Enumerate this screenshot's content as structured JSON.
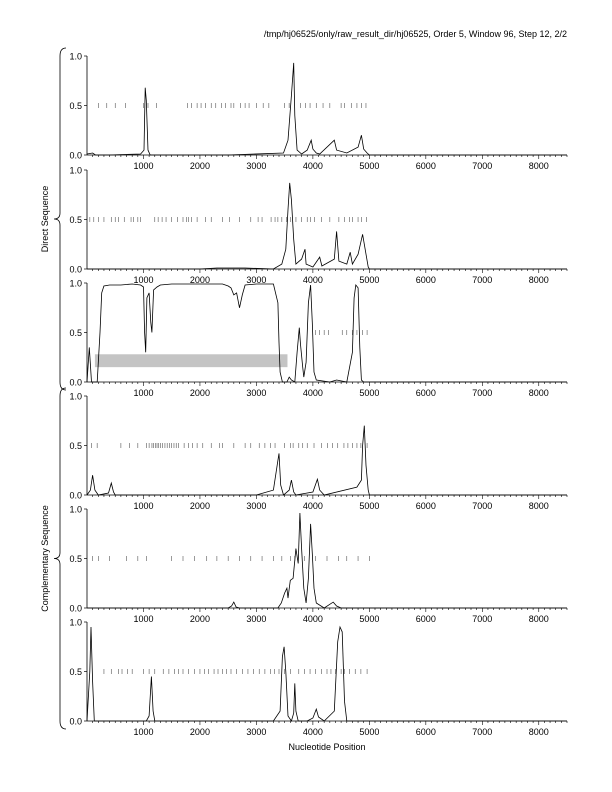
{
  "header": {
    "path": "/tmp/hj06525/only/raw_result_dir/hj06525, Order 5, Window 96, Step 12, 2/2"
  },
  "xlabel": "Nucleotide Position",
  "groups": [
    {
      "label": "Direct Sequence",
      "panels": [
        0,
        1,
        2
      ]
    },
    {
      "label": "Complementary Sequence",
      "panels": [
        3,
        4,
        5
      ]
    }
  ],
  "chart_data": {
    "type": "line",
    "xlim": [
      0,
      8500
    ],
    "ylim": [
      0,
      1
    ],
    "x_ticks": [
      1000,
      2000,
      3000,
      4000,
      5000,
      6000,
      7000,
      8000
    ],
    "y_ticks": [
      0,
      0.5,
      1
    ],
    "y_tick_labels": [
      "0.0",
      "0.5",
      "1.0"
    ],
    "panels": [
      {
        "group": "Direct Sequence",
        "line": [
          [
            0,
            0.01
          ],
          [
            100,
            0.02
          ],
          [
            150,
            0.0
          ],
          [
            400,
            0.0
          ],
          [
            950,
            0.01
          ],
          [
            1010,
            0.05
          ],
          [
            1030,
            0.68
          ],
          [
            1050,
            0.55
          ],
          [
            1080,
            0.05
          ],
          [
            1120,
            0.0
          ],
          [
            2500,
            0.0
          ],
          [
            3480,
            0.02
          ],
          [
            3560,
            0.15
          ],
          [
            3620,
            0.6
          ],
          [
            3660,
            0.93
          ],
          [
            3680,
            0.4
          ],
          [
            3720,
            0.05
          ],
          [
            3800,
            0.01
          ],
          [
            3900,
            0.05
          ],
          [
            3970,
            0.15
          ],
          [
            4000,
            0.06
          ],
          [
            4060,
            0.02
          ],
          [
            4120,
            0.01
          ],
          [
            4380,
            0.15
          ],
          [
            4420,
            0.05
          ],
          [
            4600,
            0.02
          ],
          [
            4800,
            0.08
          ],
          [
            4860,
            0.2
          ],
          [
            4900,
            0.06
          ],
          [
            4960,
            0.02
          ],
          [
            5000,
            0.0
          ],
          [
            8500,
            0.0
          ]
        ],
        "ticks_05": [
          200,
          350,
          500,
          680,
          1000,
          1080,
          1230,
          1780,
          1850,
          1950,
          2020,
          2100,
          2200,
          2280,
          2380,
          2450,
          2550,
          2600,
          2720,
          2800,
          2870,
          3000,
          3120,
          3220,
          3500,
          3580,
          3780,
          3870,
          3950,
          4060,
          4180,
          4300,
          4500,
          4560,
          4680,
          4780,
          4860,
          4940
        ]
      },
      {
        "group": "Direct Sequence",
        "line": [
          [
            0,
            0.0
          ],
          [
            2000,
            0.0
          ],
          [
            2300,
            0.01
          ],
          [
            2800,
            0.01
          ],
          [
            3300,
            0.0
          ],
          [
            3450,
            0.05
          ],
          [
            3520,
            0.2
          ],
          [
            3560,
            0.6
          ],
          [
            3590,
            0.87
          ],
          [
            3620,
            0.7
          ],
          [
            3660,
            0.3
          ],
          [
            3700,
            0.05
          ],
          [
            3800,
            0.1
          ],
          [
            3860,
            0.2
          ],
          [
            3880,
            0.05
          ],
          [
            4000,
            0.02
          ],
          [
            4120,
            0.12
          ],
          [
            4160,
            0.03
          ],
          [
            4380,
            0.1
          ],
          [
            4420,
            0.38
          ],
          [
            4460,
            0.08
          ],
          [
            4600,
            0.05
          ],
          [
            4660,
            0.17
          ],
          [
            4700,
            0.05
          ],
          [
            4800,
            0.15
          ],
          [
            4880,
            0.35
          ],
          [
            4940,
            0.15
          ],
          [
            4980,
            0.02
          ],
          [
            5000,
            0.0
          ],
          [
            8500,
            0.0
          ]
        ],
        "ticks_05": [
          50,
          120,
          200,
          300,
          430,
          500,
          560,
          660,
          780,
          820,
          900,
          950,
          1200,
          1260,
          1330,
          1400,
          1500,
          1600,
          1700,
          1760,
          1800,
          1850,
          1950,
          2100,
          2200,
          2400,
          2520,
          2700,
          2900,
          3030,
          3100,
          3260,
          3330,
          3380,
          3450,
          3530,
          3600,
          3700,
          3800,
          3900,
          3960,
          4030,
          4150,
          4300,
          4460,
          4560,
          4650,
          4700,
          4800,
          4860,
          4950
        ]
      },
      {
        "group": "Direct Sequence",
        "line": [
          [
            0,
            0.0
          ],
          [
            40,
            0.35
          ],
          [
            80,
            0.0
          ],
          [
            180,
            0.0
          ],
          [
            230,
            0.5
          ],
          [
            260,
            0.9
          ],
          [
            300,
            0.97
          ],
          [
            400,
            0.98
          ],
          [
            600,
            0.98
          ],
          [
            800,
            0.99
          ],
          [
            950,
            0.98
          ],
          [
            1000,
            0.96
          ],
          [
            1020,
            0.5
          ],
          [
            1040,
            0.3
          ],
          [
            1060,
            0.85
          ],
          [
            1100,
            0.9
          ],
          [
            1130,
            0.6
          ],
          [
            1150,
            0.5
          ],
          [
            1180,
            0.93
          ],
          [
            1240,
            0.96
          ],
          [
            1300,
            0.98
          ],
          [
            1500,
            0.99
          ],
          [
            2000,
            0.99
          ],
          [
            2400,
            0.99
          ],
          [
            2500,
            0.97
          ],
          [
            2550,
            0.95
          ],
          [
            2600,
            0.88
          ],
          [
            2650,
            0.9
          ],
          [
            2700,
            0.75
          ],
          [
            2750,
            0.88
          ],
          [
            2800,
            0.98
          ],
          [
            3000,
            0.99
          ],
          [
            3300,
            0.99
          ],
          [
            3380,
            0.8
          ],
          [
            3400,
            0.4
          ],
          [
            3420,
            0.1
          ],
          [
            3460,
            0.0
          ],
          [
            3540,
            0.0
          ],
          [
            3580,
            0.05
          ],
          [
            3620,
            0.02
          ],
          [
            3680,
            0.0
          ],
          [
            3720,
            0.3
          ],
          [
            3760,
            0.55
          ],
          [
            3780,
            0.38
          ],
          [
            3820,
            0.15
          ],
          [
            3840,
            0.05
          ],
          [
            3880,
            0.2
          ],
          [
            3920,
            0.8
          ],
          [
            3960,
            0.98
          ],
          [
            3990,
            0.6
          ],
          [
            4020,
            0.1
          ],
          [
            4060,
            0.02
          ],
          [
            4300,
            0.0
          ],
          [
            4420,
            0.02
          ],
          [
            4600,
            0.0
          ],
          [
            4700,
            0.3
          ],
          [
            4730,
            0.85
          ],
          [
            4760,
            0.98
          ],
          [
            4800,
            0.95
          ],
          [
            4830,
            0.35
          ],
          [
            4860,
            0.02
          ],
          [
            4900,
            0.0
          ],
          [
            8500,
            0.0
          ]
        ],
        "ticks_05": [
          4050,
          4120,
          4200,
          4280,
          4520,
          4600,
          4700,
          4780,
          4880,
          4960
        ],
        "shaded_region": {
          "x": [
            140,
            3550
          ],
          "y": [
            0.15,
            0.28
          ]
        }
      },
      {
        "group": "Complementary Sequence",
        "line": [
          [
            0,
            0.0
          ],
          [
            60,
            0.05
          ],
          [
            100,
            0.2
          ],
          [
            140,
            0.05
          ],
          [
            200,
            0.0
          ],
          [
            380,
            0.02
          ],
          [
            430,
            0.12
          ],
          [
            470,
            0.03
          ],
          [
            500,
            0.0
          ],
          [
            3000,
            0.0
          ],
          [
            3300,
            0.05
          ],
          [
            3380,
            0.35
          ],
          [
            3400,
            0.42
          ],
          [
            3430,
            0.1
          ],
          [
            3480,
            0.0
          ],
          [
            3580,
            0.05
          ],
          [
            3620,
            0.15
          ],
          [
            3660,
            0.03
          ],
          [
            3700,
            0.0
          ],
          [
            4000,
            0.03
          ],
          [
            4080,
            0.16
          ],
          [
            4120,
            0.05
          ],
          [
            4200,
            0.0
          ],
          [
            4780,
            0.08
          ],
          [
            4860,
            0.15
          ],
          [
            4880,
            0.5
          ],
          [
            4910,
            0.7
          ],
          [
            4940,
            0.3
          ],
          [
            4980,
            0.05
          ],
          [
            5000,
            0.0
          ],
          [
            8500,
            0.0
          ]
        ],
        "ticks_05": [
          80,
          180,
          600,
          750,
          900,
          1050,
          1100,
          1150,
          1180,
          1210,
          1240,
          1270,
          1300,
          1340,
          1380,
          1420,
          1460,
          1500,
          1540,
          1580,
          1620,
          1720,
          1800,
          1870,
          1950,
          2050,
          2200,
          2350,
          2400,
          2600,
          2800,
          2900,
          3050,
          3150,
          3250,
          3330,
          3500,
          3600,
          3650,
          3750,
          3820,
          3900,
          4020,
          4150,
          4260,
          4350,
          4440,
          4550,
          4620,
          4700,
          4780,
          4850,
          4960
        ]
      },
      {
        "group": "Complementary Sequence",
        "line": [
          [
            0,
            0.0
          ],
          [
            500,
            0.0
          ],
          [
            2500,
            0.0
          ],
          [
            2560,
            0.02
          ],
          [
            2600,
            0.06
          ],
          [
            2640,
            0.01
          ],
          [
            2700,
            0.0
          ],
          [
            3380,
            0.0
          ],
          [
            3440,
            0.05
          ],
          [
            3500,
            0.15
          ],
          [
            3540,
            0.2
          ],
          [
            3560,
            0.1
          ],
          [
            3600,
            0.28
          ],
          [
            3650,
            0.3
          ],
          [
            3700,
            0.6
          ],
          [
            3740,
            0.45
          ],
          [
            3770,
            0.96
          ],
          [
            3800,
            0.6
          ],
          [
            3840,
            0.2
          ],
          [
            3880,
            0.05
          ],
          [
            3920,
            0.3
          ],
          [
            3960,
            0.85
          ],
          [
            3990,
            0.55
          ],
          [
            4020,
            0.2
          ],
          [
            4060,
            0.05
          ],
          [
            4200,
            0.0
          ],
          [
            4360,
            0.06
          ],
          [
            4420,
            0.02
          ],
          [
            4500,
            0.0
          ],
          [
            8500,
            0.0
          ]
        ],
        "ticks_05": [
          100,
          200,
          400,
          700,
          900,
          1050,
          1500,
          1700,
          1900,
          2120,
          2300,
          2500,
          2700,
          2900,
          3100,
          3300,
          3450,
          3600,
          3680,
          3850,
          4050,
          4250,
          4450,
          4600,
          4800,
          5000
        ]
      },
      {
        "group": "Complementary Sequence",
        "line": [
          [
            0,
            0.0
          ],
          [
            50,
            0.5
          ],
          [
            70,
            0.95
          ],
          [
            100,
            0.4
          ],
          [
            130,
            0.0
          ],
          [
            200,
            0.0
          ],
          [
            1050,
            0.0
          ],
          [
            1100,
            0.05
          ],
          [
            1140,
            0.45
          ],
          [
            1170,
            0.1
          ],
          [
            1200,
            0.0
          ],
          [
            3300,
            0.0
          ],
          [
            3420,
            0.1
          ],
          [
            3460,
            0.65
          ],
          [
            3490,
            0.75
          ],
          [
            3520,
            0.5
          ],
          [
            3560,
            0.05
          ],
          [
            3620,
            0.0
          ],
          [
            3660,
            0.08
          ],
          [
            3680,
            0.38
          ],
          [
            3700,
            0.1
          ],
          [
            3740,
            0.0
          ],
          [
            3900,
            0.0
          ],
          [
            4000,
            0.03
          ],
          [
            4060,
            0.12
          ],
          [
            4100,
            0.04
          ],
          [
            4200,
            0.0
          ],
          [
            4380,
            0.1
          ],
          [
            4440,
            0.8
          ],
          [
            4480,
            0.95
          ],
          [
            4520,
            0.9
          ],
          [
            4560,
            0.2
          ],
          [
            4600,
            0.0
          ],
          [
            8500,
            0.0
          ]
        ],
        "ticks_05": [
          300,
          430,
          560,
          620,
          720,
          800,
          1000,
          1100,
          1200,
          1350,
          1450,
          1550,
          1620,
          1700,
          1800,
          1900,
          2000,
          2080,
          2150,
          2250,
          2320,
          2400,
          2470,
          2550,
          2650,
          2750,
          2850,
          2950,
          3050,
          3150,
          3250,
          3320,
          3400,
          3500,
          3600,
          3750,
          3850,
          3950,
          4050,
          4150,
          4250,
          4320,
          4400,
          4500,
          4560,
          4650,
          4750,
          4850,
          4960
        ]
      }
    ]
  }
}
